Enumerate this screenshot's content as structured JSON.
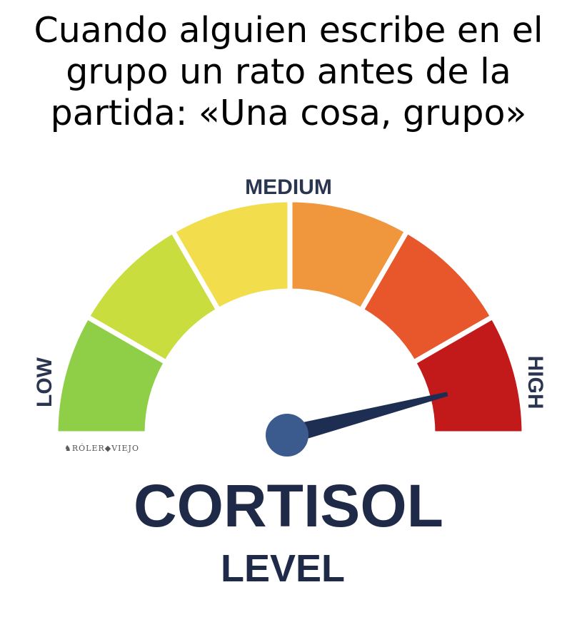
{
  "caption": {
    "lines": [
      "Cuando alguien escribe en el",
      "grupo un rato antes de la",
      "partida: «Una cosa, grupo»"
    ]
  },
  "gauge": {
    "labels": {
      "low": "LOW",
      "medium": "MEDIUM",
      "high": "HIGH"
    },
    "segment_colors": [
      "#8fcf48",
      "#c9dd3e",
      "#f2dd4c",
      "#f0963c",
      "#e8562c",
      "#c2191b"
    ],
    "needle_value_fraction": 0.92,
    "needle_color": "#1e2d52",
    "hub_color": "#3b5b8e"
  },
  "title": {
    "main": "CORTISOL",
    "sub": "LEVEL"
  },
  "watermark": "ROLEROVIEJO"
}
